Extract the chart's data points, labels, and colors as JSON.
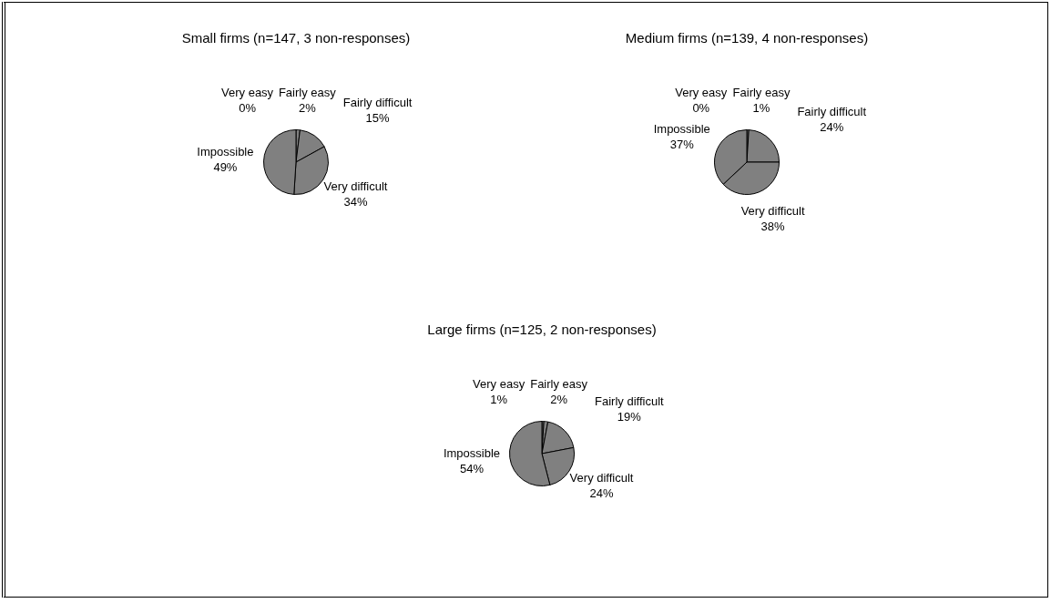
{
  "chart_data": [
    {
      "type": "pie",
      "title": "Small firms (n=147, 3 non-responses)",
      "categories": [
        "Very easy",
        "Fairly easy",
        "Fairly difficult",
        "Very difficult",
        "Impossible"
      ],
      "values": [
        0,
        2,
        15,
        34,
        49
      ],
      "value_labels": [
        "0%",
        "2%",
        "15%",
        "34%",
        "49%"
      ],
      "colors": [
        "#808080",
        "#808080",
        "#808080",
        "#808080",
        "#808080"
      ],
      "legend": false
    },
    {
      "type": "pie",
      "title": "Medium firms (n=139, 4 non-responses)",
      "categories": [
        "Very easy",
        "Fairly easy",
        "Fairly difficult",
        "Very difficult",
        "Impossible"
      ],
      "values": [
        0,
        1,
        24,
        38,
        37
      ],
      "value_labels": [
        "0%",
        "1%",
        "24%",
        "38%",
        "37%"
      ],
      "colors": [
        "#808080",
        "#808080",
        "#808080",
        "#808080",
        "#808080"
      ],
      "legend": false
    },
    {
      "type": "pie",
      "title": "Large firms (n=125, 2 non-responses)",
      "categories": [
        "Very easy",
        "Fairly easy",
        "Fairly difficult",
        "Very difficult",
        "Impossible"
      ],
      "values": [
        1,
        2,
        19,
        24,
        54
      ],
      "value_labels": [
        "1%",
        "2%",
        "19%",
        "24%",
        "54%"
      ],
      "colors": [
        "#808080",
        "#808080",
        "#808080",
        "#808080",
        "#808080"
      ],
      "legend": false
    }
  ]
}
